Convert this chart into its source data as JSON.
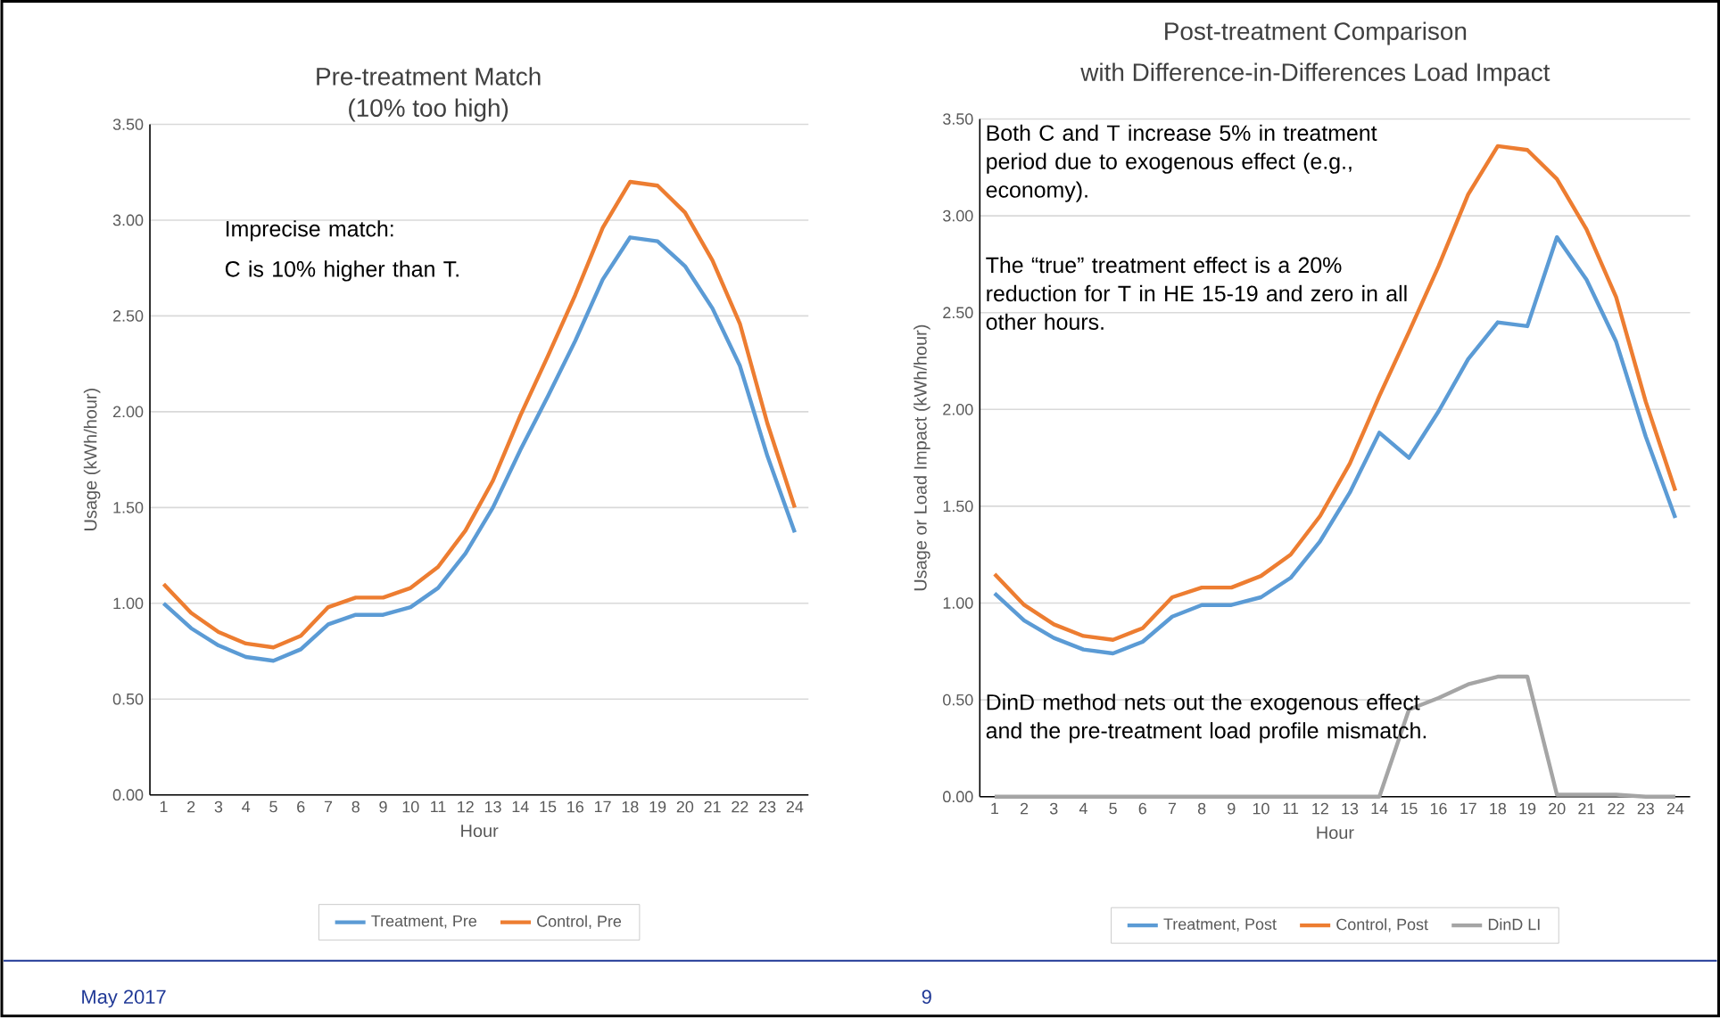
{
  "chart_data": [
    {
      "type": "line",
      "title": "Pre-treatment Match",
      "subtitle": "(10% too high)",
      "xlabel": "Hour",
      "ylabel": "Usage (kWh/hour)",
      "categories": [
        "1",
        "2",
        "3",
        "4",
        "5",
        "6",
        "7",
        "8",
        "9",
        "10",
        "11",
        "12",
        "13",
        "14",
        "15",
        "16",
        "17",
        "18",
        "19",
        "20",
        "21",
        "22",
        "23",
        "24"
      ],
      "series": [
        {
          "name": "Treatment, Pre",
          "color": "#5b9bd5",
          "values": [
            1.0,
            0.87,
            0.78,
            0.72,
            0.7,
            0.76,
            0.89,
            0.94,
            0.94,
            0.98,
            1.08,
            1.26,
            1.5,
            1.8,
            2.08,
            2.37,
            2.69,
            2.91,
            2.89,
            2.76,
            2.54,
            2.24,
            1.77,
            1.37
          ]
        },
        {
          "name": "Control, Pre",
          "color": "#ed7d31",
          "values": [
            1.1,
            0.95,
            0.85,
            0.79,
            0.77,
            0.83,
            0.98,
            1.03,
            1.03,
            1.08,
            1.19,
            1.38,
            1.64,
            1.98,
            2.29,
            2.61,
            2.96,
            3.2,
            3.18,
            3.04,
            2.79,
            2.46,
            1.94,
            1.5
          ]
        }
      ],
      "ylim": [
        0,
        3.5
      ],
      "yticks": [
        {
          "value": 0,
          "label": "0.00"
        },
        {
          "value": 0.5,
          "label": "0.50"
        },
        {
          "value": 1,
          "label": "1.00"
        },
        {
          "value": 1.5,
          "label": "1.50"
        },
        {
          "value": 2,
          "label": "2.00"
        },
        {
          "value": 2.5,
          "label": "2.50"
        },
        {
          "value": 3,
          "label": "3.00"
        },
        {
          "value": 3.5,
          "label": "3.50"
        }
      ],
      "grid": "y",
      "legend": "bottom",
      "marker": "none",
      "line_style": "solid",
      "annotations": [
        "Imprecise match:",
        "C is 10% higher than T."
      ]
    },
    {
      "type": "line",
      "title": "Post-treatment Comparison",
      "subtitle": "with Difference-in-Differences Load Impact",
      "xlabel": "Hour",
      "ylabel": "Usage or Load Impact (kWh/hour)",
      "categories": [
        "1",
        "2",
        "3",
        "4",
        "5",
        "6",
        "7",
        "8",
        "9",
        "10",
        "11",
        "12",
        "13",
        "14",
        "15",
        "16",
        "17",
        "18",
        "19",
        "20",
        "21",
        "22",
        "23",
        "24"
      ],
      "series": [
        {
          "name": "Treatment, Post",
          "color": "#5b9bd5",
          "values": [
            1.05,
            0.91,
            0.82,
            0.76,
            0.74,
            0.8,
            0.93,
            0.99,
            0.99,
            1.03,
            1.13,
            1.32,
            1.57,
            1.88,
            1.75,
            1.99,
            2.26,
            2.45,
            2.43,
            2.89,
            2.67,
            2.35,
            1.86,
            1.44
          ]
        },
        {
          "name": "Control, Post",
          "color": "#ed7d31",
          "values": [
            1.15,
            0.99,
            0.89,
            0.83,
            0.81,
            0.87,
            1.03,
            1.08,
            1.08,
            1.14,
            1.25,
            1.45,
            1.72,
            2.07,
            2.4,
            2.74,
            3.11,
            3.36,
            3.34,
            3.19,
            2.93,
            2.58,
            2.04,
            1.58
          ]
        },
        {
          "name": "DinD LI",
          "color": "#a5a5a5",
          "values": [
            0,
            0,
            0,
            0,
            0,
            0,
            0,
            0,
            0,
            0,
            0,
            0,
            0,
            0,
            0.45,
            0.51,
            0.58,
            0.62,
            0.62,
            0.01,
            0.01,
            0.01,
            0,
            0
          ]
        }
      ],
      "ylim": [
        0,
        3.5
      ],
      "yticks": [
        {
          "value": 0,
          "label": "0.00"
        },
        {
          "value": 0.5,
          "label": "0.50"
        },
        {
          "value": 1,
          "label": "1.00"
        },
        {
          "value": 1.5,
          "label": "1.50"
        },
        {
          "value": 2,
          "label": "2.00"
        },
        {
          "value": 2.5,
          "label": "2.50"
        },
        {
          "value": 3,
          "label": "3.00"
        },
        {
          "value": 3.5,
          "label": "3.50"
        }
      ],
      "grid": "y",
      "legend": "bottom",
      "marker": "none",
      "line_style": "solid",
      "annotations": [
        "Both C and T increase 5% in treatment period due to exogenous effect (e.g., economy).",
        "The “true” treatment effect is a 20% reduction for T in HE 15-19 and zero in all other hours.",
        "DinD method nets out the exogenous effect and the pre-treatment load profile mismatch.",
        "May 2017",
        "9"
      ]
    }
  ]
}
